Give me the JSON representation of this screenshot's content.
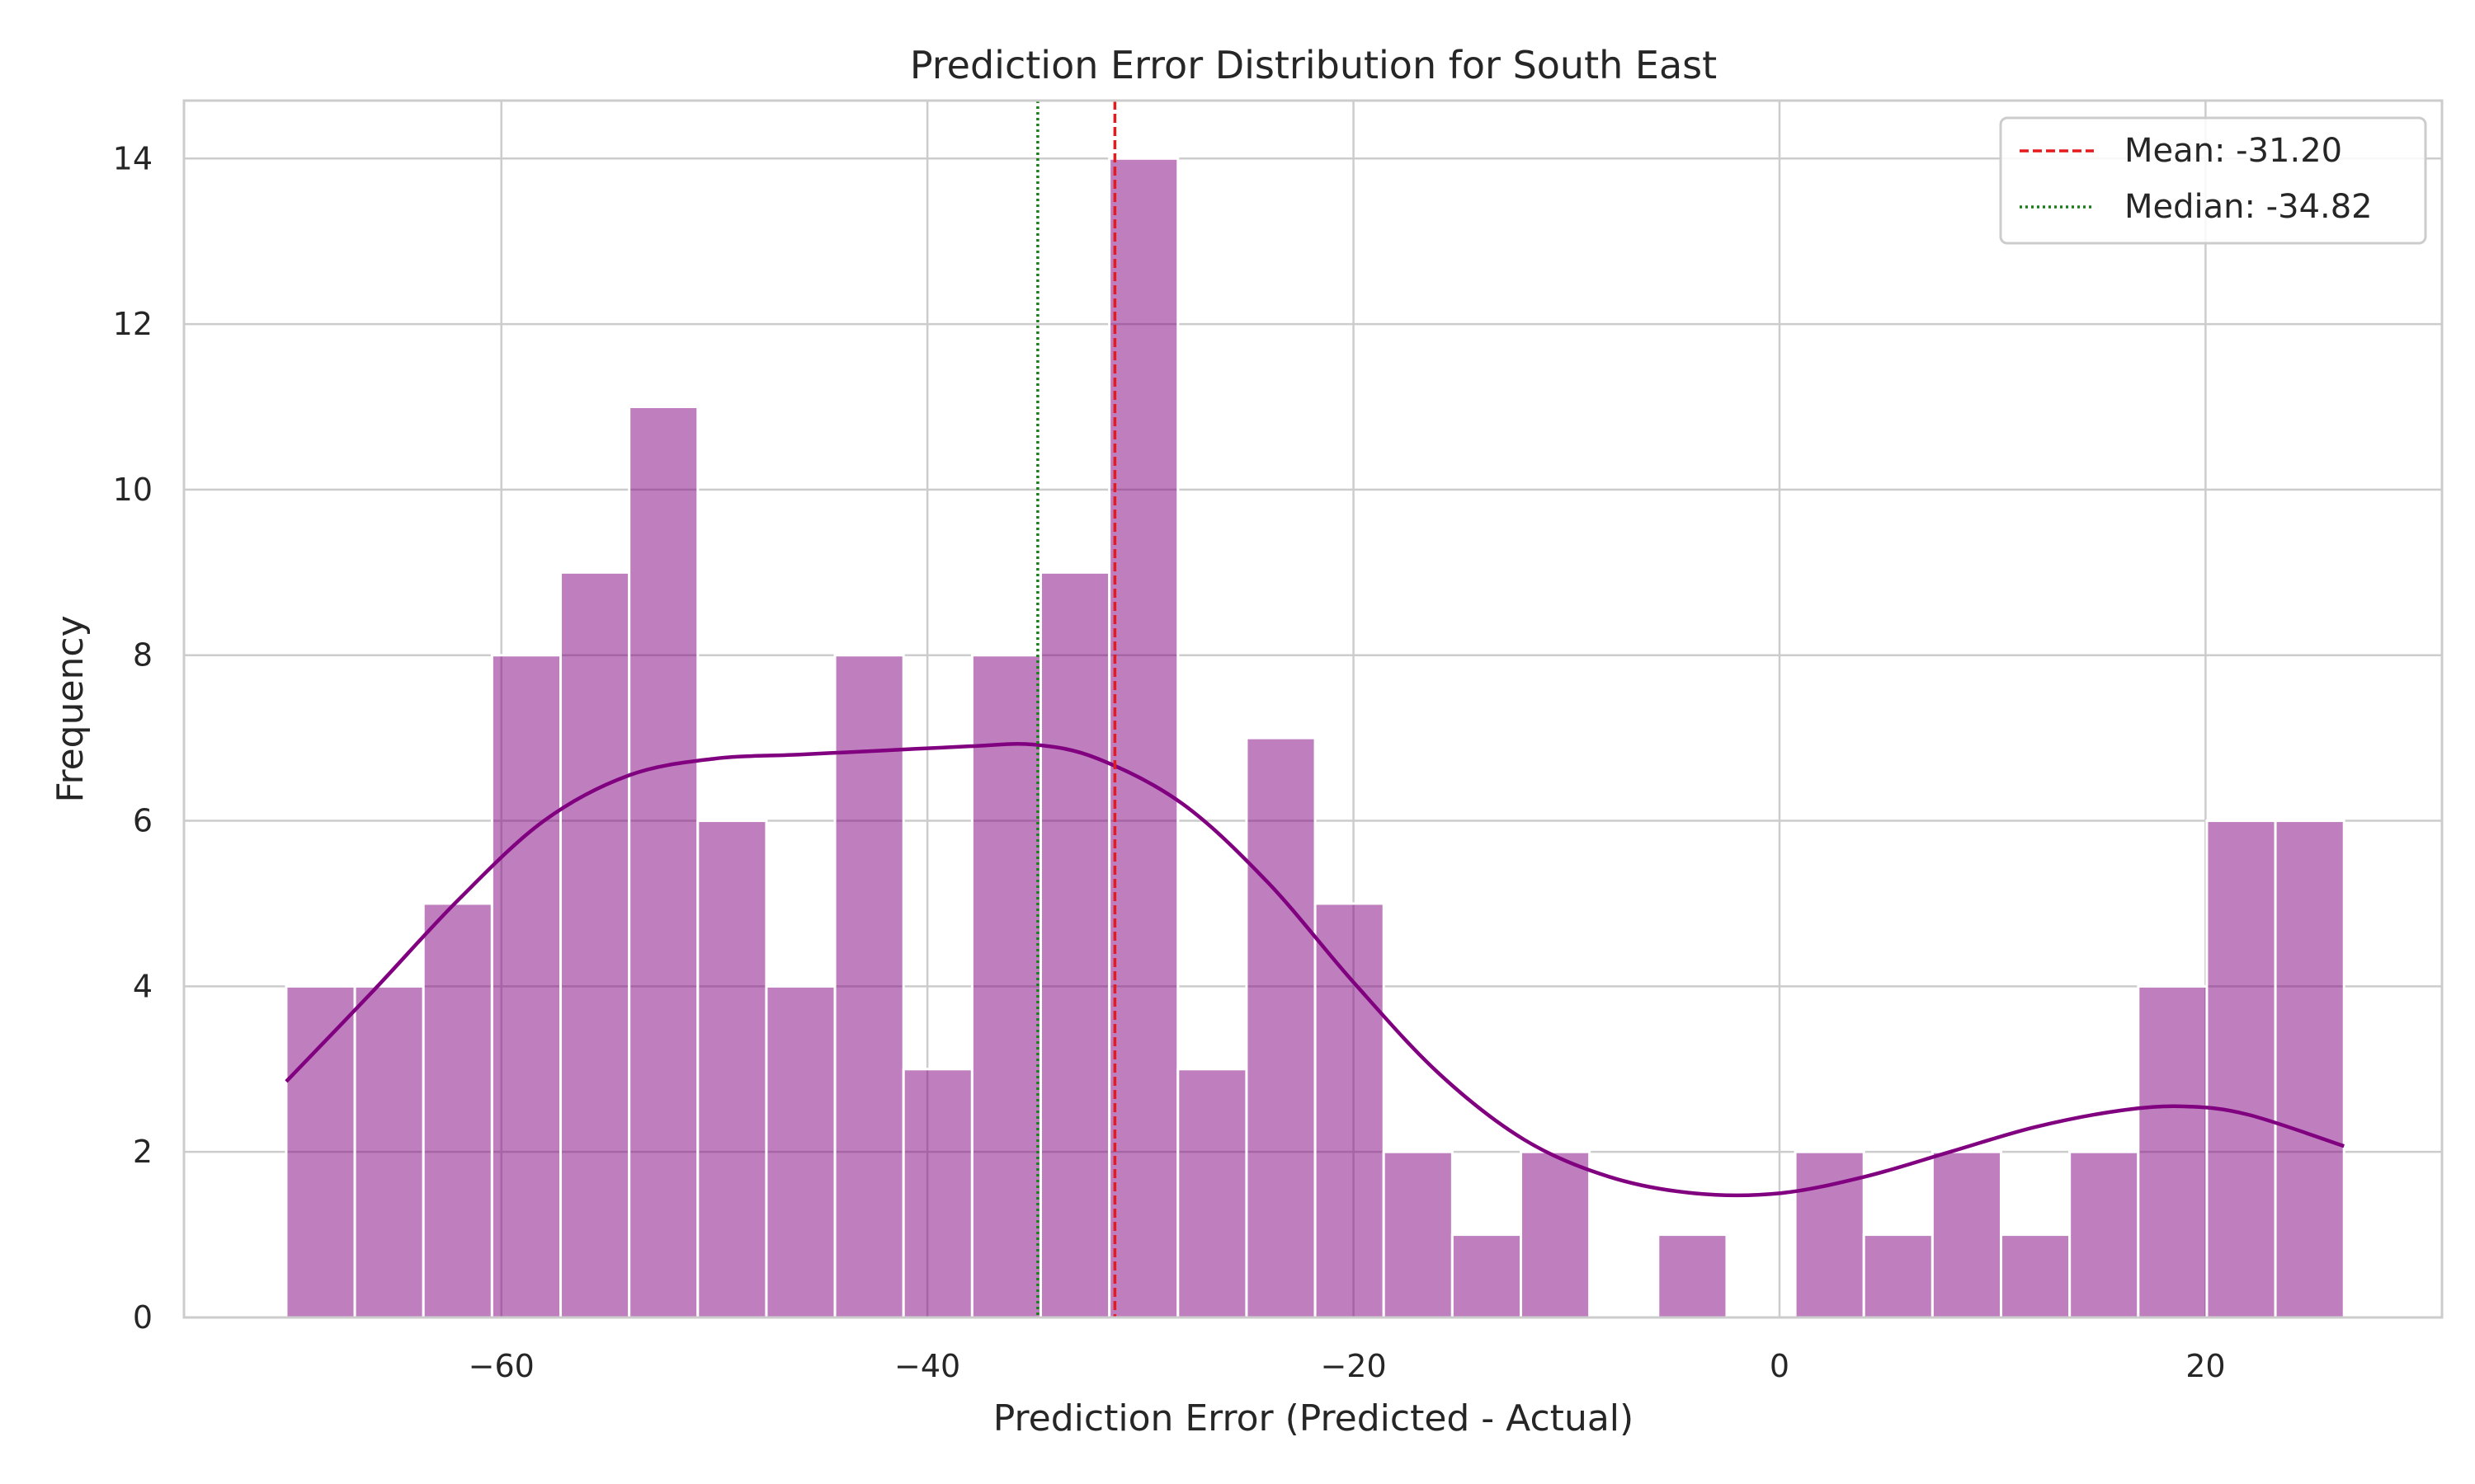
{
  "chart_data": {
    "type": "bar",
    "title": "Prediction Error Distribution for South East",
    "xlabel": "Prediction Error (Predicted - Actual)",
    "ylabel": "Frequency",
    "xlim": [
      -74.9,
      31.1
    ],
    "ylim": [
      0,
      14.7
    ],
    "xticks": [
      -60,
      -40,
      -20,
      0,
      20
    ],
    "xtick_labels": [
      "−60",
      "−40",
      "−20",
      "0",
      "20"
    ],
    "yticks": [
      0,
      2,
      4,
      6,
      8,
      10,
      12,
      14
    ],
    "ytick_labels": [
      "0",
      "2",
      "4",
      "6",
      "8",
      "10",
      "12",
      "14"
    ],
    "grid": true,
    "bar_color": "#800080",
    "bar_alpha": 0.5,
    "bins": {
      "start": -70.1,
      "width": 3.22,
      "counts": [
        4,
        4,
        5,
        8,
        9,
        11,
        6,
        4,
        8,
        3,
        8,
        9,
        14,
        3,
        7,
        5,
        2,
        1,
        2,
        0,
        1,
        0,
        2,
        1,
        2,
        1,
        2,
        4,
        6,
        6
      ]
    },
    "kde": {
      "color": "#800080",
      "x": [
        -70.1,
        -66,
        -62,
        -58,
        -54,
        -50,
        -46,
        -42,
        -38,
        -35,
        -32,
        -28,
        -24,
        -20,
        -16,
        -12,
        -8,
        -4,
        0,
        4,
        8,
        12,
        16,
        19,
        22,
        26.5
      ],
      "y": [
        2.85,
        3.95,
        5.05,
        6.0,
        6.55,
        6.75,
        6.8,
        6.85,
        6.9,
        6.92,
        6.75,
        6.2,
        5.25,
        4.05,
        2.95,
        2.15,
        1.7,
        1.5,
        1.5,
        1.7,
        2.0,
        2.3,
        2.5,
        2.55,
        2.45,
        2.07
      ]
    },
    "lines": [
      {
        "name": "Mean: -31.20",
        "x": -31.2,
        "color": "#e41a1c",
        "style": "dashed"
      },
      {
        "name": "Median: -34.82",
        "x": -34.82,
        "color": "#1a7f1a",
        "style": "dotted"
      }
    ],
    "legend_position": "top-right"
  }
}
